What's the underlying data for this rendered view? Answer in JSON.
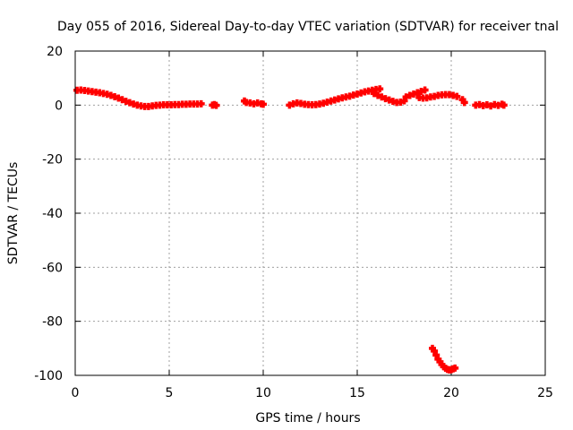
{
  "chart_data": {
    "type": "scatter",
    "title": "Day 055 of 2016, Sidereal Day-to-day VTEC variation (SDTVAR) for receiver tnal",
    "xlabel": "GPS time / hours",
    "ylabel": "SDTVAR / TECUs",
    "xlim": [
      0,
      25
    ],
    "ylim": [
      -100,
      20
    ],
    "xticks": [
      "0",
      "5",
      "10",
      "15",
      "20",
      "25"
    ],
    "yticks": [
      "20",
      "0",
      "-20",
      "-40",
      "-60",
      "-80",
      "-100"
    ],
    "grid": true,
    "marker": "plus",
    "color": "#ff0000",
    "series": [
      {
        "points": [
          [
            0.1,
            5.5
          ],
          [
            0.3,
            5.6
          ],
          [
            0.5,
            5.4
          ],
          [
            0.7,
            5.2
          ],
          [
            0.9,
            5.0
          ],
          [
            1.1,
            4.8
          ],
          [
            1.3,
            4.6
          ],
          [
            1.5,
            4.3
          ],
          [
            1.7,
            4.0
          ],
          [
            1.9,
            3.6
          ],
          [
            2.1,
            3.1
          ],
          [
            2.3,
            2.6
          ],
          [
            2.5,
            2.0
          ],
          [
            2.7,
            1.4
          ],
          [
            2.9,
            0.9
          ],
          [
            3.1,
            0.4
          ],
          [
            3.3,
            0.0
          ],
          [
            3.5,
            -0.3
          ],
          [
            3.7,
            -0.5
          ],
          [
            3.9,
            -0.5
          ],
          [
            4.1,
            -0.3
          ],
          [
            4.3,
            -0.1
          ],
          [
            4.5,
            0.0
          ],
          [
            4.7,
            0.1
          ],
          [
            4.9,
            0.1
          ],
          [
            5.1,
            0.1
          ],
          [
            5.3,
            0.2
          ],
          [
            5.5,
            0.2
          ],
          [
            5.7,
            0.3
          ],
          [
            5.9,
            0.3
          ],
          [
            6.1,
            0.4
          ],
          [
            6.3,
            0.4
          ],
          [
            6.5,
            0.4
          ],
          [
            6.7,
            0.5
          ],
          [
            7.3,
            0.0
          ],
          [
            7.4,
            0.2
          ],
          [
            7.5,
            -0.1
          ],
          [
            9.0,
            1.5
          ],
          [
            9.1,
            1.0
          ],
          [
            9.3,
            0.8
          ],
          [
            9.5,
            0.5
          ],
          [
            9.7,
            0.8
          ],
          [
            9.9,
            0.5
          ],
          [
            10.0,
            0.3
          ],
          [
            11.4,
            0.0
          ],
          [
            11.6,
            0.5
          ],
          [
            11.8,
            0.8
          ],
          [
            12.0,
            0.6
          ],
          [
            12.2,
            0.3
          ],
          [
            12.4,
            0.2
          ],
          [
            12.6,
            0.1
          ],
          [
            12.8,
            0.2
          ],
          [
            13.0,
            0.4
          ],
          [
            13.2,
            0.7
          ],
          [
            13.4,
            1.1
          ],
          [
            13.6,
            1.5
          ],
          [
            13.8,
            1.9
          ],
          [
            14.0,
            2.3
          ],
          [
            14.2,
            2.7
          ],
          [
            14.4,
            3.0
          ],
          [
            14.6,
            3.3
          ],
          [
            14.8,
            3.7
          ],
          [
            15.0,
            4.1
          ],
          [
            15.2,
            4.5
          ],
          [
            15.4,
            4.9
          ],
          [
            15.6,
            5.2
          ],
          [
            15.8,
            5.5
          ],
          [
            16.0,
            5.8
          ],
          [
            16.2,
            6.0
          ],
          [
            15.9,
            4.3
          ],
          [
            16.1,
            3.6
          ],
          [
            16.3,
            3.0
          ],
          [
            16.5,
            2.4
          ],
          [
            16.7,
            1.9
          ],
          [
            16.9,
            1.4
          ],
          [
            17.1,
            1.0
          ],
          [
            17.3,
            1.1
          ],
          [
            17.5,
            1.6
          ],
          [
            17.6,
            3.0
          ],
          [
            17.8,
            3.6
          ],
          [
            18.0,
            4.1
          ],
          [
            18.2,
            4.6
          ],
          [
            18.4,
            5.1
          ],
          [
            18.6,
            5.6
          ],
          [
            18.3,
            2.8
          ],
          [
            18.5,
            2.6
          ],
          [
            18.7,
            2.7
          ],
          [
            18.9,
            3.0
          ],
          [
            19.1,
            3.2
          ],
          [
            19.3,
            3.6
          ],
          [
            19.5,
            3.8
          ],
          [
            19.7,
            3.9
          ],
          [
            19.9,
            3.9
          ],
          [
            20.1,
            3.6
          ],
          [
            20.3,
            3.2
          ],
          [
            20.6,
            2.0
          ],
          [
            20.7,
            1.0
          ],
          [
            21.3,
            0.0
          ],
          [
            21.5,
            0.2
          ],
          [
            21.7,
            -0.2
          ],
          [
            21.9,
            0.1
          ],
          [
            22.1,
            -0.3
          ],
          [
            22.3,
            0.2
          ],
          [
            22.5,
            -0.1
          ],
          [
            22.7,
            0.3
          ],
          [
            22.8,
            0.0
          ],
          [
            19.0,
            -90.0
          ],
          [
            19.1,
            -91.0
          ],
          [
            19.2,
            -92.5
          ],
          [
            19.3,
            -94.0
          ],
          [
            19.4,
            -95.0
          ],
          [
            19.5,
            -96.0
          ],
          [
            19.6,
            -96.8
          ],
          [
            19.7,
            -97.4
          ],
          [
            19.8,
            -97.8
          ],
          [
            19.9,
            -98.0
          ],
          [
            20.0,
            -97.9
          ],
          [
            20.1,
            -97.6
          ],
          [
            20.2,
            -97.3
          ]
        ]
      }
    ]
  }
}
